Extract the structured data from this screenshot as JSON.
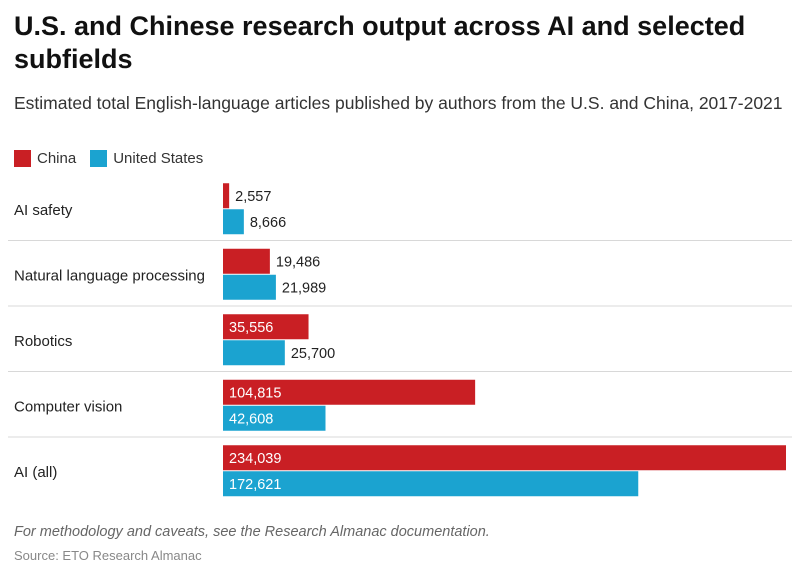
{
  "chart_data": {
    "type": "bar",
    "orientation": "horizontal",
    "title": "U.S. and Chinese research output across AI and selected subfields",
    "subtitle": "Estimated total English-language articles published by authors from the U.S. and China, 2017-2021",
    "categories": [
      "AI safety",
      "Natural language processing",
      "Robotics",
      "Computer vision",
      "AI (all)"
    ],
    "series": [
      {
        "name": "China",
        "color": "#c91f24",
        "values": [
          2557,
          19486,
          35556,
          104815,
          234039
        ],
        "labels": [
          "2,557",
          "19,486",
          "35,556",
          "104,815",
          "234,039"
        ]
      },
      {
        "name": "United States",
        "color": "#1ba3d0",
        "values": [
          8666,
          21989,
          25700,
          42608,
          172621
        ],
        "labels": [
          "8,666",
          "21,989",
          "25,700",
          "42,608",
          "172,621"
        ]
      }
    ],
    "xlim": [
      0,
      234039
    ],
    "grid": false,
    "legend": "top-left"
  },
  "footer": {
    "note": "For methodology and caveats, see the Research Almanac documentation.",
    "source": "Source: ETO Research Almanac"
  }
}
